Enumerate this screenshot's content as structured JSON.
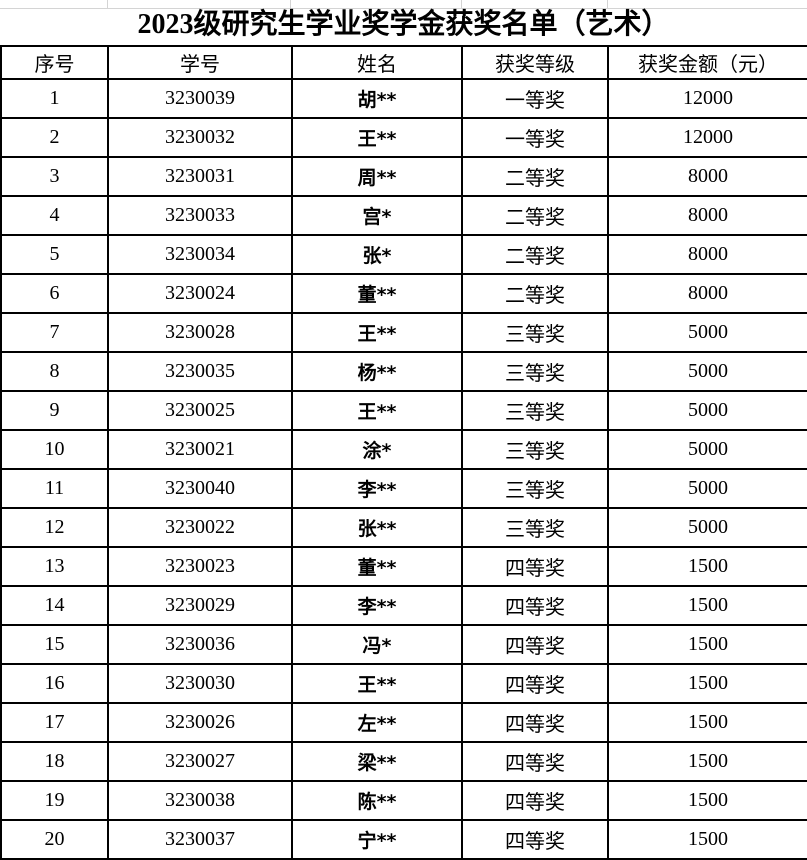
{
  "title": "2023级研究生学业奖学金获奖名单（艺术）",
  "columns": [
    "序号",
    "学号",
    "姓名",
    "获奖等级",
    "获奖金额（元）"
  ],
  "rows": [
    [
      "1",
      "3230039",
      "胡**",
      "一等奖",
      "12000"
    ],
    [
      "2",
      "3230032",
      "王**",
      "一等奖",
      "12000"
    ],
    [
      "3",
      "3230031",
      "周**",
      "二等奖",
      "8000"
    ],
    [
      "4",
      "3230033",
      "宫*",
      "二等奖",
      "8000"
    ],
    [
      "5",
      "3230034",
      "张*",
      "二等奖",
      "8000"
    ],
    [
      "6",
      "3230024",
      "董**",
      "二等奖",
      "8000"
    ],
    [
      "7",
      "3230028",
      "王**",
      "三等奖",
      "5000"
    ],
    [
      "8",
      "3230035",
      "杨**",
      "三等奖",
      "5000"
    ],
    [
      "9",
      "3230025",
      "王**",
      "三等奖",
      "5000"
    ],
    [
      "10",
      "3230021",
      "涂*",
      "三等奖",
      "5000"
    ],
    [
      "11",
      "3230040",
      "李**",
      "三等奖",
      "5000"
    ],
    [
      "12",
      "3230022",
      "张**",
      "三等奖",
      "5000"
    ],
    [
      "13",
      "3230023",
      "董**",
      "四等奖",
      "1500"
    ],
    [
      "14",
      "3230029",
      "李**",
      "四等奖",
      "1500"
    ],
    [
      "15",
      "3230036",
      "冯*",
      "四等奖",
      "1500"
    ],
    [
      "16",
      "3230030",
      "王**",
      "四等奖",
      "1500"
    ],
    [
      "17",
      "3230026",
      "左**",
      "四等奖",
      "1500"
    ],
    [
      "18",
      "3230027",
      "梁**",
      "四等奖",
      "1500"
    ],
    [
      "19",
      "3230038",
      "陈**",
      "四等奖",
      "1500"
    ],
    [
      "20",
      "3230037",
      "宁**",
      "四等奖",
      "1500"
    ]
  ]
}
